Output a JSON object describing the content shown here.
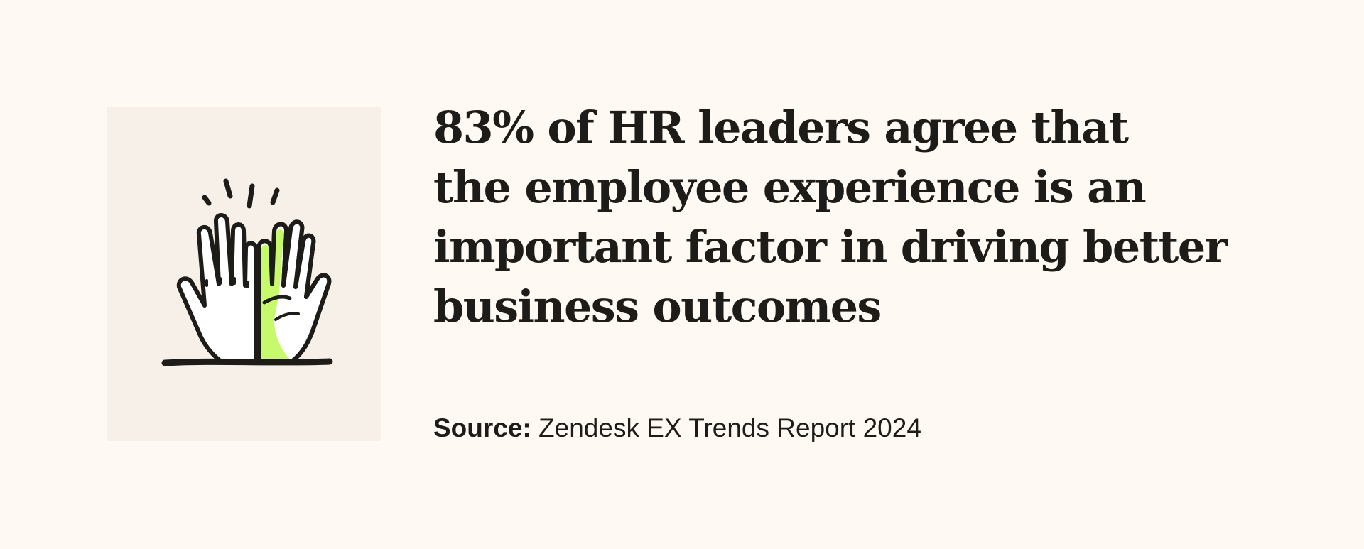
{
  "illustration": {
    "icon": "high-five-hands-icon",
    "accent_color": "#c6f96b",
    "panel_color": "#f6f0e8",
    "ink_color": "#1d1c18"
  },
  "headline": {
    "lines": [
      "83% of HR leaders agree that",
      "the employee experience is an",
      "important factor in driving better",
      "business outcomes"
    ]
  },
  "source": {
    "label": "Source:",
    "text": " Zendesk EX Trends Report 2024"
  },
  "colors": {
    "background": "#fefaf3",
    "text": "#1d1c18"
  }
}
